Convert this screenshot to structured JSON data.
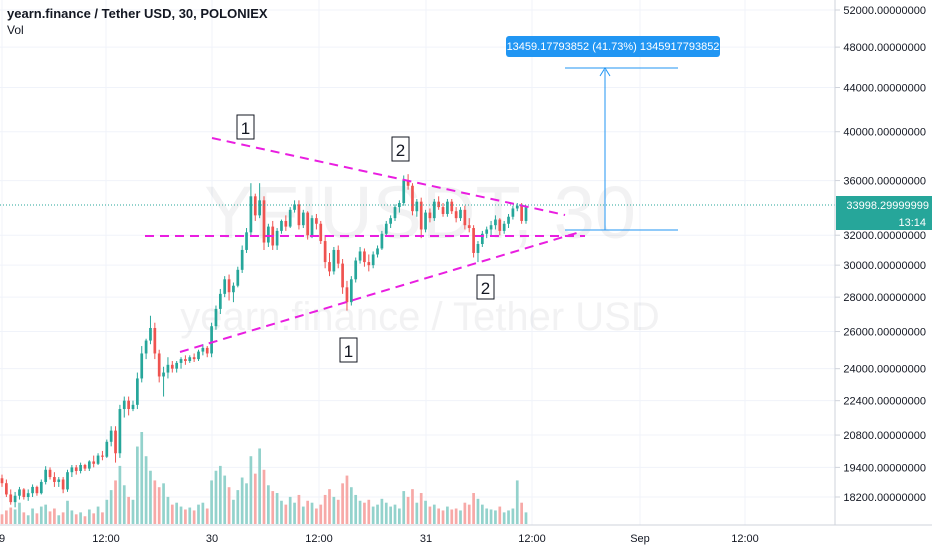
{
  "header": {
    "symbol_title": "yearn.finance / Tether USD, 30, POLONIEX",
    "volume_label": "Vol"
  },
  "watermark": {
    "ticker": "YFIUSDT, 30",
    "description": "yearn.finance / Tether USD"
  },
  "price_scale": {
    "labels": [
      "52000.00000000",
      "48000.00000000",
      "44000.00000000",
      "40000.00000000",
      "36000.00000000",
      "32000.00000000",
      "30000.00000000",
      "28000.00000000",
      "26000.00000000",
      "24000.00000000",
      "22400.00000000",
      "20800.00000000",
      "19400.00000000",
      "18200.00000000"
    ],
    "last_price_label": "33998.29999999",
    "countdown_label": "13:14"
  },
  "time_axis": {
    "labels": [
      "9",
      "12:00",
      "30",
      "12:00",
      "31",
      "12:00",
      "Sep",
      "12:00"
    ]
  },
  "measure_tool": {
    "label": "13459.17793852 (41.73%) 1345917793852"
  },
  "wave_labels": {
    "top_1": "1",
    "top_2": "2",
    "bottom_1": "1",
    "bottom_2": "2"
  },
  "colors": {
    "up": "#26a69a",
    "down": "#ef5350",
    "vol_up": "#93d2cc",
    "vol_down": "#f7a9a7",
    "trendline": "#e91ee0",
    "measure": "#2196f3",
    "grid": "#f0f3fa",
    "text": "#131722"
  },
  "chart_data": {
    "type": "candlestick",
    "title": "yearn.finance / Tether USD, 30, POLONIEX",
    "log_scale": true,
    "ylim": [
      17300,
      54000
    ],
    "x_axis_ticks": [
      "9",
      "12:00",
      "30",
      "12:00",
      "31",
      "12:00",
      "Sep",
      "12:00"
    ],
    "last_price": 33998.29999999,
    "ohlc": [
      {
        "o": 18950,
        "h": 19100,
        "l": 18600,
        "c": 18750,
        "v": 10
      },
      {
        "o": 18750,
        "h": 18900,
        "l": 18200,
        "c": 18300,
        "v": 14
      },
      {
        "o": 18300,
        "h": 18500,
        "l": 17900,
        "c": 18000,
        "v": 17
      },
      {
        "o": 18000,
        "h": 18400,
        "l": 17800,
        "c": 18250,
        "v": 15
      },
      {
        "o": 18250,
        "h": 18600,
        "l": 18100,
        "c": 18500,
        "v": 22
      },
      {
        "o": 18500,
        "h": 18550,
        "l": 18100,
        "c": 18200,
        "v": 12
      },
      {
        "o": 18200,
        "h": 18500,
        "l": 18050,
        "c": 18350,
        "v": 9
      },
      {
        "o": 18350,
        "h": 18700,
        "l": 18200,
        "c": 18600,
        "v": 16
      },
      {
        "o": 18600,
        "h": 18650,
        "l": 18250,
        "c": 18350,
        "v": 11
      },
      {
        "o": 18350,
        "h": 18900,
        "l": 18300,
        "c": 18800,
        "v": 18
      },
      {
        "o": 18800,
        "h": 19450,
        "l": 18700,
        "c": 19300,
        "v": 20
      },
      {
        "o": 19300,
        "h": 19400,
        "l": 18900,
        "c": 19000,
        "v": 13
      },
      {
        "o": 19000,
        "h": 19200,
        "l": 18600,
        "c": 18800,
        "v": 16
      },
      {
        "o": 18800,
        "h": 19000,
        "l": 18600,
        "c": 18900,
        "v": 9
      },
      {
        "o": 18900,
        "h": 19000,
        "l": 18350,
        "c": 18500,
        "v": 12
      },
      {
        "o": 18500,
        "h": 19300,
        "l": 18400,
        "c": 19200,
        "v": 24
      },
      {
        "o": 19200,
        "h": 19500,
        "l": 19000,
        "c": 19400,
        "v": 14
      },
      {
        "o": 19400,
        "h": 19500,
        "l": 19100,
        "c": 19250,
        "v": 10
      },
      {
        "o": 19250,
        "h": 19600,
        "l": 19150,
        "c": 19500,
        "v": 12
      },
      {
        "o": 19500,
        "h": 19550,
        "l": 19250,
        "c": 19350,
        "v": 8
      },
      {
        "o": 19350,
        "h": 19700,
        "l": 19250,
        "c": 19650,
        "v": 15
      },
      {
        "o": 19650,
        "h": 19900,
        "l": 19400,
        "c": 19550,
        "v": 11
      },
      {
        "o": 19550,
        "h": 20000,
        "l": 19500,
        "c": 19900,
        "v": 18
      },
      {
        "o": 19900,
        "h": 20100,
        "l": 19700,
        "c": 19850,
        "v": 12
      },
      {
        "o": 19850,
        "h": 20600,
        "l": 19800,
        "c": 20500,
        "v": 25
      },
      {
        "o": 20500,
        "h": 21200,
        "l": 20300,
        "c": 21000,
        "v": 35
      },
      {
        "o": 21000,
        "h": 21200,
        "l": 19600,
        "c": 20000,
        "v": 45
      },
      {
        "o": 20000,
        "h": 22200,
        "l": 19800,
        "c": 22000,
        "v": 60
      },
      {
        "o": 22000,
        "h": 22600,
        "l": 21600,
        "c": 22400,
        "v": 40
      },
      {
        "o": 22400,
        "h": 22600,
        "l": 21700,
        "c": 22000,
        "v": 28
      },
      {
        "o": 22000,
        "h": 22400,
        "l": 21900,
        "c": 22200,
        "v": 25
      },
      {
        "o": 22200,
        "h": 23800,
        "l": 22000,
        "c": 23500,
        "v": 80
      },
      {
        "o": 23500,
        "h": 25200,
        "l": 23300,
        "c": 24800,
        "v": 95
      },
      {
        "o": 24800,
        "h": 25600,
        "l": 24500,
        "c": 25500,
        "v": 70
      },
      {
        "o": 25500,
        "h": 26900,
        "l": 25300,
        "c": 26200,
        "v": 55
      },
      {
        "o": 26200,
        "h": 26500,
        "l": 24500,
        "c": 24800,
        "v": 45
      },
      {
        "o": 24800,
        "h": 25000,
        "l": 23300,
        "c": 23600,
        "v": 38
      },
      {
        "o": 23600,
        "h": 24100,
        "l": 22600,
        "c": 23800,
        "v": 42
      },
      {
        "o": 23800,
        "h": 24600,
        "l": 23500,
        "c": 24200,
        "v": 28
      },
      {
        "o": 24200,
        "h": 24400,
        "l": 23800,
        "c": 24000,
        "v": 20
      },
      {
        "o": 24000,
        "h": 24400,
        "l": 23800,
        "c": 24300,
        "v": 22
      },
      {
        "o": 24300,
        "h": 24600,
        "l": 24000,
        "c": 24500,
        "v": 18
      },
      {
        "o": 24500,
        "h": 24700,
        "l": 24200,
        "c": 24400,
        "v": 15
      },
      {
        "o": 24400,
        "h": 24700,
        "l": 24300,
        "c": 24600,
        "v": 17
      },
      {
        "o": 24600,
        "h": 24800,
        "l": 24350,
        "c": 24500,
        "v": 14
      },
      {
        "o": 24500,
        "h": 25000,
        "l": 24400,
        "c": 24900,
        "v": 20
      },
      {
        "o": 24900,
        "h": 25300,
        "l": 24700,
        "c": 25100,
        "v": 22
      },
      {
        "o": 25100,
        "h": 25200,
        "l": 24600,
        "c": 24800,
        "v": 16
      },
      {
        "o": 24800,
        "h": 26500,
        "l": 24600,
        "c": 26300,
        "v": 45
      },
      {
        "o": 26300,
        "h": 27500,
        "l": 26100,
        "c": 27300,
        "v": 55
      },
      {
        "o": 27300,
        "h": 28500,
        "l": 27000,
        "c": 28200,
        "v": 60
      },
      {
        "o": 28200,
        "h": 29300,
        "l": 28000,
        "c": 29100,
        "v": 50
      },
      {
        "o": 29100,
        "h": 29400,
        "l": 27800,
        "c": 28300,
        "v": 38
      },
      {
        "o": 28300,
        "h": 28900,
        "l": 27700,
        "c": 28700,
        "v": 25
      },
      {
        "o": 28700,
        "h": 29900,
        "l": 28600,
        "c": 29700,
        "v": 35
      },
      {
        "o": 29700,
        "h": 31300,
        "l": 29500,
        "c": 31000,
        "v": 48
      },
      {
        "o": 31000,
        "h": 32500,
        "l": 30800,
        "c": 32200,
        "v": 42
      },
      {
        "o": 32200,
        "h": 35800,
        "l": 32000,
        "c": 34800,
        "v": 70
      },
      {
        "o": 34800,
        "h": 35000,
        "l": 33000,
        "c": 33400,
        "v": 52
      },
      {
        "o": 33400,
        "h": 35800,
        "l": 33200,
        "c": 34500,
        "v": 78
      },
      {
        "o": 34500,
        "h": 34800,
        "l": 31000,
        "c": 31500,
        "v": 56
      },
      {
        "o": 31500,
        "h": 32800,
        "l": 31200,
        "c": 32600,
        "v": 40
      },
      {
        "o": 32600,
        "h": 33000,
        "l": 31000,
        "c": 31300,
        "v": 34
      },
      {
        "o": 31300,
        "h": 32500,
        "l": 31000,
        "c": 32300,
        "v": 32
      },
      {
        "o": 32300,
        "h": 33100,
        "l": 32100,
        "c": 33000,
        "v": 24
      },
      {
        "o": 33000,
        "h": 33400,
        "l": 32300,
        "c": 32600,
        "v": 20
      },
      {
        "o": 32600,
        "h": 34000,
        "l": 32500,
        "c": 33800,
        "v": 28
      },
      {
        "o": 33800,
        "h": 34500,
        "l": 33600,
        "c": 34200,
        "v": 22
      },
      {
        "o": 34200,
        "h": 34500,
        "l": 32400,
        "c": 32700,
        "v": 30
      },
      {
        "o": 32700,
        "h": 33800,
        "l": 32500,
        "c": 33600,
        "v": 18
      },
      {
        "o": 33600,
        "h": 33700,
        "l": 31700,
        "c": 32000,
        "v": 24
      },
      {
        "o": 32000,
        "h": 33400,
        "l": 31800,
        "c": 33200,
        "v": 22
      },
      {
        "o": 33200,
        "h": 33500,
        "l": 32400,
        "c": 32800,
        "v": 16
      },
      {
        "o": 32800,
        "h": 33000,
        "l": 31400,
        "c": 31600,
        "v": 20
      },
      {
        "o": 31600,
        "h": 32000,
        "l": 29800,
        "c": 30200,
        "v": 30
      },
      {
        "o": 30200,
        "h": 30800,
        "l": 29300,
        "c": 29600,
        "v": 36
      },
      {
        "o": 29600,
        "h": 31200,
        "l": 29400,
        "c": 31000,
        "v": 28
      },
      {
        "o": 31000,
        "h": 31300,
        "l": 29800,
        "c": 30100,
        "v": 25
      },
      {
        "o": 30100,
        "h": 30400,
        "l": 28200,
        "c": 28600,
        "v": 42
      },
      {
        "o": 28600,
        "h": 29000,
        "l": 27200,
        "c": 27700,
        "v": 50
      },
      {
        "o": 27700,
        "h": 29300,
        "l": 27500,
        "c": 29100,
        "v": 38
      },
      {
        "o": 29100,
        "h": 30500,
        "l": 28900,
        "c": 30300,
        "v": 30
      },
      {
        "o": 30300,
        "h": 31200,
        "l": 30100,
        "c": 30900,
        "v": 24
      },
      {
        "o": 30900,
        "h": 31100,
        "l": 29900,
        "c": 30200,
        "v": 22
      },
      {
        "o": 30200,
        "h": 30700,
        "l": 29600,
        "c": 30000,
        "v": 25
      },
      {
        "o": 30000,
        "h": 30900,
        "l": 29800,
        "c": 30700,
        "v": 18
      },
      {
        "o": 30700,
        "h": 31300,
        "l": 30500,
        "c": 31100,
        "v": 20
      },
      {
        "o": 31100,
        "h": 32300,
        "l": 31000,
        "c": 32100,
        "v": 26
      },
      {
        "o": 32100,
        "h": 33000,
        "l": 31900,
        "c": 32800,
        "v": 22
      },
      {
        "o": 32800,
        "h": 33400,
        "l": 32500,
        "c": 33200,
        "v": 18
      },
      {
        "o": 33200,
        "h": 34200,
        "l": 33000,
        "c": 34000,
        "v": 20
      },
      {
        "o": 34000,
        "h": 34500,
        "l": 33600,
        "c": 34300,
        "v": 16
      },
      {
        "o": 34300,
        "h": 36400,
        "l": 34100,
        "c": 36000,
        "v": 34
      },
      {
        "o": 36000,
        "h": 36500,
        "l": 35300,
        "c": 35600,
        "v": 28
      },
      {
        "o": 35600,
        "h": 35800,
        "l": 33400,
        "c": 33700,
        "v": 36
      },
      {
        "o": 33700,
        "h": 34600,
        "l": 33300,
        "c": 34400,
        "v": 22
      },
      {
        "o": 34400,
        "h": 34700,
        "l": 31800,
        "c": 32400,
        "v": 32
      },
      {
        "o": 32400,
        "h": 33800,
        "l": 32200,
        "c": 33600,
        "v": 24
      },
      {
        "o": 33600,
        "h": 33900,
        "l": 32900,
        "c": 33200,
        "v": 18
      },
      {
        "o": 33200,
        "h": 34600,
        "l": 33000,
        "c": 34400,
        "v": 20
      },
      {
        "o": 34400,
        "h": 34800,
        "l": 33800,
        "c": 34000,
        "v": 16
      },
      {
        "o": 34000,
        "h": 34300,
        "l": 33300,
        "c": 33500,
        "v": 14
      },
      {
        "o": 33500,
        "h": 34600,
        "l": 33300,
        "c": 34400,
        "v": 18
      },
      {
        "o": 34400,
        "h": 34600,
        "l": 33500,
        "c": 33700,
        "v": 15
      },
      {
        "o": 33700,
        "h": 34000,
        "l": 32900,
        "c": 33200,
        "v": 16
      },
      {
        "o": 33200,
        "h": 34000,
        "l": 33000,
        "c": 33800,
        "v": 14
      },
      {
        "o": 33800,
        "h": 34100,
        "l": 32400,
        "c": 32700,
        "v": 22
      },
      {
        "o": 32700,
        "h": 33200,
        "l": 32200,
        "c": 32500,
        "v": 20
      },
      {
        "o": 32500,
        "h": 32700,
        "l": 30500,
        "c": 30800,
        "v": 32
      },
      {
        "o": 30800,
        "h": 31600,
        "l": 30200,
        "c": 31400,
        "v": 26
      },
      {
        "o": 31400,
        "h": 32300,
        "l": 31200,
        "c": 32100,
        "v": 20
      },
      {
        "o": 32100,
        "h": 32600,
        "l": 31800,
        "c": 32400,
        "v": 16
      },
      {
        "o": 32400,
        "h": 33000,
        "l": 32000,
        "c": 32700,
        "v": 15
      },
      {
        "o": 32700,
        "h": 33400,
        "l": 32400,
        "c": 33100,
        "v": 14
      },
      {
        "o": 33100,
        "h": 33200,
        "l": 32000,
        "c": 32300,
        "v": 18
      },
      {
        "o": 32300,
        "h": 33000,
        "l": 32100,
        "c": 32800,
        "v": 12
      },
      {
        "o": 32800,
        "h": 33500,
        "l": 32500,
        "c": 33300,
        "v": 14
      },
      {
        "o": 33300,
        "h": 34100,
        "l": 33100,
        "c": 33900,
        "v": 16
      },
      {
        "o": 33900,
        "h": 34300,
        "l": 33700,
        "c": 34100,
        "v": 45
      },
      {
        "o": 34100,
        "h": 34300,
        "l": 32800,
        "c": 33000,
        "v": 22
      },
      {
        "o": 33000,
        "h": 34000,
        "l": 32800,
        "c": 33998.3,
        "v": 12
      }
    ]
  }
}
